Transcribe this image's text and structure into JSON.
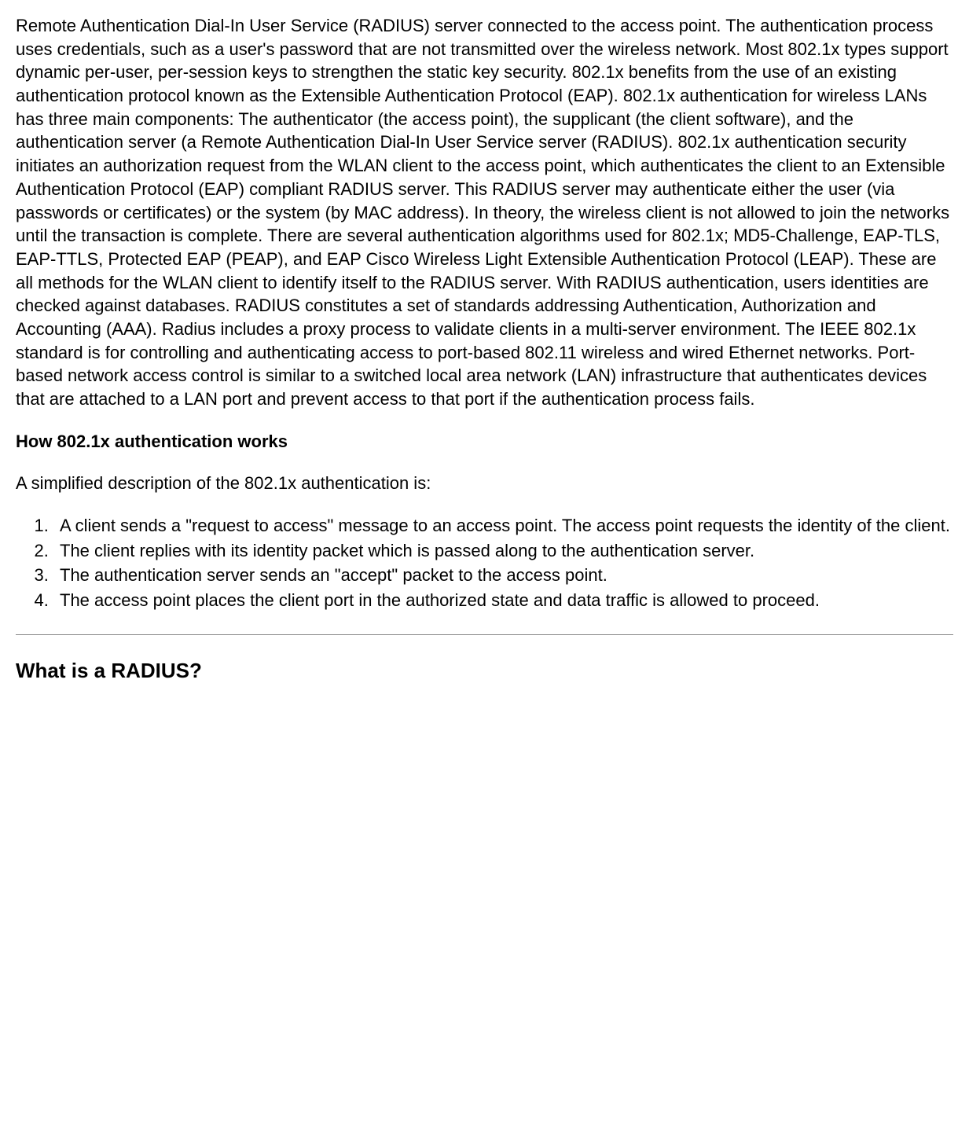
{
  "paragraph1": "Remote Authentication Dial-In User Service (RADIUS) server connected to the access point. The authentication process uses credentials, such as a user's password that are not transmitted over the wireless network. Most 802.1x types support dynamic per-user, per-session keys to strengthen the static key security. 802.1x benefits from the use of an existing authentication protocol known as the Extensible Authentication Protocol (EAP). 802.1x authentication for wireless LANs has three main components: The authenticator (the access point), the supplicant (the client software), and the authentication server (a Remote Authentication Dial-In User Service server (RADIUS). 802.1x authentication security initiates an authorization request from the WLAN client to the access point, which authenticates the client to an Extensible Authentication Protocol (EAP) compliant RADIUS server. This RADIUS server may authenticate either the user (via passwords or certificates) or the system (by MAC address). In theory, the wireless client is not allowed to join the networks until the transaction is complete. There are several authentication algorithms used for 802.1x; MD5-Challenge, EAP-TLS, EAP-TTLS, Protected EAP (PEAP), and EAP Cisco Wireless Light Extensible Authentication Protocol (LEAP). These are all methods for the WLAN client to identify itself to the RADIUS server. With RADIUS authentication, users identities are checked against databases. RADIUS constitutes a set of standards addressing Authentication, Authorization and Accounting (AAA). Radius includes a proxy process to validate clients in a multi-server environment. The IEEE 802.1x standard is for controlling and authenticating access to port-based 802.11 wireless and wired Ethernet networks. Port-based network access control is similar to a switched local area network (LAN) infrastructure that authenticates devices that are attached to a LAN port and prevent access to that port if the authentication process fails.",
  "heading1": "How 802.1x authentication works",
  "intro": "A simplified description of the 802.1x authentication is:",
  "steps": {
    "s1": "A client sends a \"request to access\" message to an access point. The access point requests the identity of the client.",
    "s2": "The client replies with its identity packet which is passed along to the authentication server.",
    "s3": "The authentication server sends an \"accept\" packet to the access point.",
    "s4": "The access point places the client port in the authorized state and data traffic is allowed to proceed."
  },
  "heading2": "What is a RADIUS?"
}
